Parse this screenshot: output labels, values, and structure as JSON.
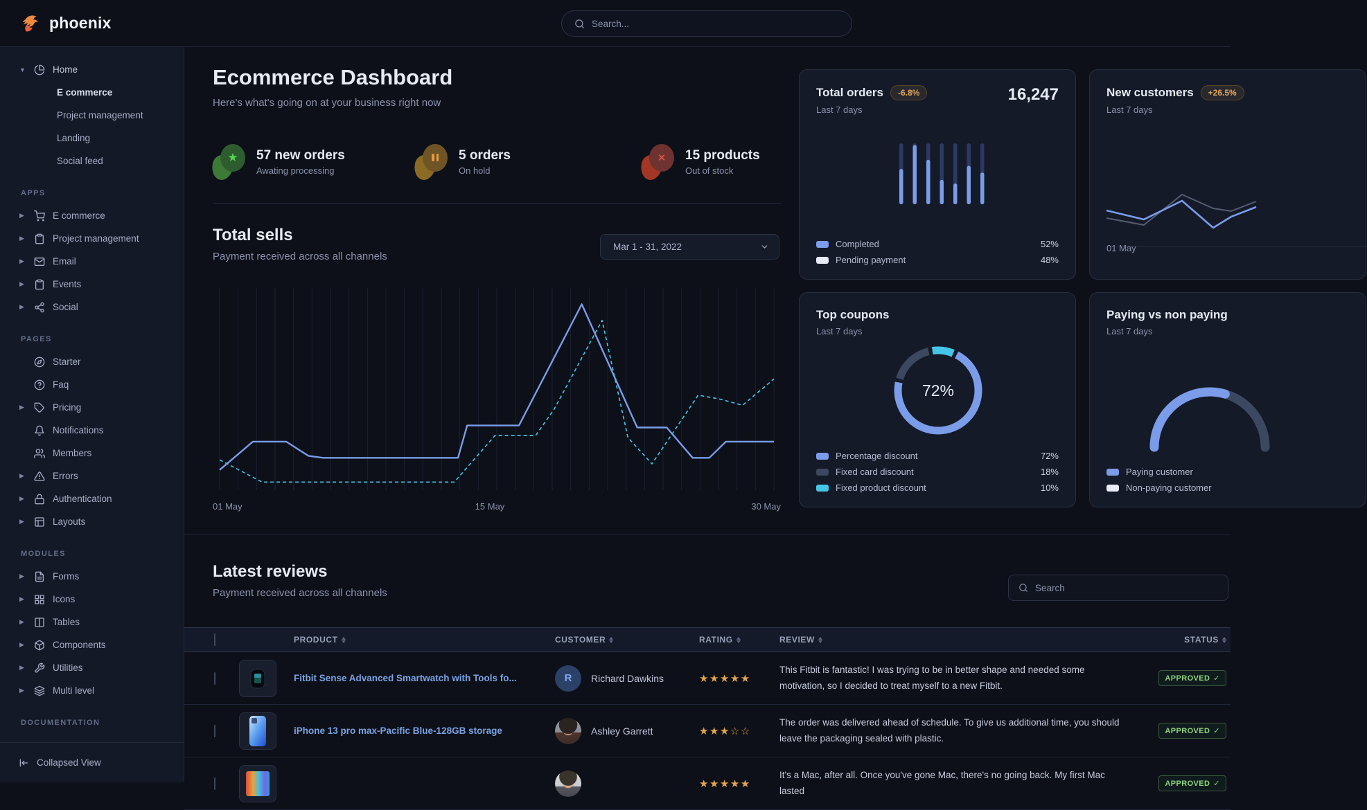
{
  "navbar": {
    "logo_text": "phoenix",
    "search_placeholder": "Search...",
    "brand_color": "#ed8a3e"
  },
  "sidebar": {
    "home_group": {
      "label": "Home",
      "icon": "pie-chart",
      "children": [
        {
          "label": "E commerce",
          "active": true
        },
        {
          "label": "Project management",
          "active": false
        },
        {
          "label": "Landing",
          "active": false
        },
        {
          "label": "Social feed",
          "active": false
        }
      ]
    },
    "sections": [
      {
        "label": "APPS",
        "items": [
          {
            "label": "E commerce",
            "icon": "cart",
            "caret": true
          },
          {
            "label": "Project management",
            "icon": "clipboard",
            "caret": true
          },
          {
            "label": "Email",
            "icon": "mail",
            "caret": true
          },
          {
            "label": "Events",
            "icon": "clipboard",
            "caret": true
          },
          {
            "label": "Social",
            "icon": "share",
            "caret": true
          }
        ]
      },
      {
        "label": "PAGES",
        "items": [
          {
            "label": "Starter",
            "icon": "compass",
            "caret": false
          },
          {
            "label": "Faq",
            "icon": "help-circle",
            "caret": false
          },
          {
            "label": "Pricing",
            "icon": "tag",
            "caret": true
          },
          {
            "label": "Notifications",
            "icon": "bell",
            "caret": false
          },
          {
            "label": "Members",
            "icon": "users",
            "caret": false
          },
          {
            "label": "Errors",
            "icon": "alert-triangle",
            "caret": true
          },
          {
            "label": "Authentication",
            "icon": "lock",
            "caret": true
          },
          {
            "label": "Layouts",
            "icon": "layout",
            "caret": true
          }
        ]
      },
      {
        "label": "MODULES",
        "items": [
          {
            "label": "Forms",
            "icon": "file-text",
            "caret": true
          },
          {
            "label": "Icons",
            "icon": "grid",
            "caret": true
          },
          {
            "label": "Tables",
            "icon": "columns",
            "caret": true
          },
          {
            "label": "Components",
            "icon": "package",
            "caret": true
          },
          {
            "label": "Utilities",
            "icon": "wrench",
            "caret": true
          },
          {
            "label": "Multi level",
            "icon": "layers",
            "caret": true
          }
        ]
      },
      {
        "label": "DOCUMENTATION",
        "items": []
      }
    ],
    "footer": {
      "label": "Collapsed View",
      "icon": "collapse-left"
    }
  },
  "header": {
    "title": "Ecommerce Dashboard",
    "subtitle": "Here's what's going on at your business right now"
  },
  "stats": [
    {
      "title": "57 new orders",
      "subtitle": "Awating processing",
      "icon": "star",
      "accent": "#52d652",
      "circle_color": "#2e5c2f",
      "blob_color": "#3d7a37"
    },
    {
      "title": "5 orders",
      "subtitle": "On hold",
      "icon": "pause",
      "accent": "#e89b3d",
      "circle_color": "#6f5426",
      "blob_color": "#8a6a25"
    },
    {
      "title": "15 products",
      "subtitle": "Out of stock",
      "icon": "x",
      "accent": "#e85c4a",
      "circle_color": "#6e3230",
      "blob_color": "#a43626"
    }
  ],
  "total_sells": {
    "title": "Total sells",
    "subtitle": "Payment received across all channels",
    "date_range": "Mar 1 - 31, 2022"
  },
  "cards": {
    "total_orders": {
      "title": "Total orders",
      "badge": "-6.8%",
      "period": "Last 7 days",
      "value": "16,247",
      "legend": [
        {
          "label": "Completed",
          "value": "52%",
          "color": "#7b9ce9"
        },
        {
          "label": "Pending payment",
          "value": "48%",
          "color": "#e8ecf7"
        }
      ]
    },
    "new_customers": {
      "title": "New customers",
      "badge": "+26.5%",
      "period": "Last 7 days",
      "x_label": "01 May"
    },
    "top_coupons": {
      "title": "Top coupons",
      "period": "Last 7 days",
      "center_value": "72%",
      "legend": [
        {
          "label": "Percentage discount",
          "value": "72%",
          "color": "#7b9ce9"
        },
        {
          "label": "Fixed card discount",
          "value": "18%",
          "color": "#3c4860"
        },
        {
          "label": "Fixed product discount",
          "value": "10%",
          "color": "#45c6e8"
        }
      ]
    },
    "paying": {
      "title": "Paying vs non paying",
      "period": "Last 7 days",
      "legend": [
        {
          "label": "Paying customer",
          "color": "#7b9ce9"
        },
        {
          "label": "Non-paying customer",
          "color": "#e8ecf7"
        }
      ]
    }
  },
  "chart_data": [
    {
      "id": "total-sells",
      "type": "line",
      "title": "Total sells",
      "x_range": [
        0,
        30
      ],
      "x_tick_labels": [
        "01 May",
        "15 May",
        "30 May"
      ],
      "grid": "vertical-daily",
      "ylim": [
        0,
        100
      ],
      "series": [
        {
          "name": "sells-current",
          "style": "solid",
          "color": "#7b9ce9",
          "points": [
            [
              0,
              10
            ],
            [
              1.8,
              24
            ],
            [
              3.6,
              24
            ],
            [
              4.8,
              17
            ],
            [
              5.6,
              16
            ],
            [
              12.9,
              16
            ],
            [
              13.4,
              32
            ],
            [
              16.2,
              32
            ],
            [
              19.6,
              92
            ],
            [
              22.6,
              31
            ],
            [
              24.2,
              31
            ],
            [
              25.6,
              16
            ],
            [
              26.5,
              16
            ],
            [
              27.4,
              24
            ],
            [
              30,
              24
            ]
          ]
        },
        {
          "name": "sells-previous",
          "style": "dashed",
          "color": "#45c6e8",
          "points": [
            [
              0,
              15
            ],
            [
              2.3,
              4
            ],
            [
              12.7,
              4
            ],
            [
              14.9,
              27
            ],
            [
              17.1,
              27
            ],
            [
              18.1,
              40
            ],
            [
              20.7,
              84
            ],
            [
              22.1,
              26
            ],
            [
              23.4,
              13
            ],
            [
              25.9,
              47
            ],
            [
              27.1,
              45
            ],
            [
              28.3,
              42
            ],
            [
              30,
              55
            ]
          ]
        }
      ]
    },
    {
      "id": "total-orders",
      "type": "bar",
      "title": "Total orders - Last 7 days",
      "value_total": 16247,
      "change_pct": -6.8,
      "completed_pct": 52,
      "pending_pct": 48,
      "bar_completed_fractions": [
        0.58,
        0.97,
        0.73,
        0.4,
        0.34,
        0.63,
        0.52
      ],
      "colors": {
        "completed": "#7b9ce9",
        "pending": "#2c3a63"
      }
    },
    {
      "id": "new-customers",
      "type": "line",
      "title": "New customers - Last 7 days",
      "change_pct": 26.5,
      "x_tick_labels": [
        "01 May"
      ],
      "series": [
        {
          "name": "current",
          "color": "#7b9ce9",
          "points": [
            [
              24,
              43
            ],
            [
              78,
              56
            ],
            [
              133,
              29
            ],
            [
              178,
              68
            ],
            [
              204,
              52
            ],
            [
              240,
              38
            ]
          ]
        },
        {
          "name": "previous",
          "color": "#555d73",
          "points": [
            [
              24,
              54
            ],
            [
              78,
              64
            ],
            [
              133,
              20
            ],
            [
              178,
              40
            ],
            [
              204,
              44
            ],
            [
              240,
              30
            ]
          ]
        }
      ]
    },
    {
      "id": "top-coupons",
      "type": "pie",
      "title": "Top coupons - Last 7 days",
      "center_label": "72%",
      "slices": [
        {
          "label": "Percentage discount",
          "value": 72,
          "color": "#7b9ce9"
        },
        {
          "label": "Fixed card discount",
          "value": 18,
          "color": "#3c4860"
        },
        {
          "label": "Fixed product discount",
          "value": 10,
          "color": "#45c6e8"
        }
      ]
    },
    {
      "id": "paying-gauge",
      "type": "pie",
      "title": "Paying vs non paying - Last 7 days",
      "shape": "half-gauge",
      "slices": [
        {
          "label": "Paying customer",
          "value": 59,
          "color": "#7b9ce9"
        },
        {
          "label": "Non-paying customer",
          "value": 41,
          "color": "#3c4860"
        }
      ]
    }
  ],
  "reviews": {
    "title": "Latest reviews",
    "subtitle": "Payment received across all channels",
    "search_placeholder": "Search",
    "columns": [
      "PRODUCT",
      "CUSTOMER",
      "RATING",
      "REVIEW",
      "STATUS"
    ],
    "rows": [
      {
        "product": "Fitbit Sense Advanced Smartwatch with Tools fo...",
        "thumb": "smartwatch",
        "customer": "Richard Dawkins",
        "avatar_type": "initial",
        "avatar_text": "R",
        "rating": 5,
        "review": "This Fitbit is fantastic! I was trying to be in better shape and needed some motivation, so I decided to treat myself to a new Fitbit.",
        "status": "APPROVED"
      },
      {
        "product": "iPhone 13 pro max-Pacific Blue-128GB storage",
        "thumb": "iphone",
        "customer": "Ashley Garrett",
        "avatar_type": "photo-female",
        "avatar_text": "",
        "rating": 3,
        "review": "The order was delivered ahead of schedule. To give us additional time, you should leave the packaging sealed with plastic.",
        "status": "APPROVED"
      },
      {
        "product": "",
        "thumb": "macbook",
        "customer": "",
        "avatar_type": "photo-male",
        "avatar_text": "",
        "rating": 5,
        "review": "It's a Mac, after all. Once you've gone Mac, there's no going back. My first Mac lasted",
        "status": "APPROVED"
      }
    ]
  },
  "colors": {
    "primary": "#7b9ce9",
    "info": "#45c6e8",
    "success": "#8fd47e",
    "warning": "#e2a75f",
    "gold": "#e5a54b",
    "slate_segment": "#3c4860"
  }
}
